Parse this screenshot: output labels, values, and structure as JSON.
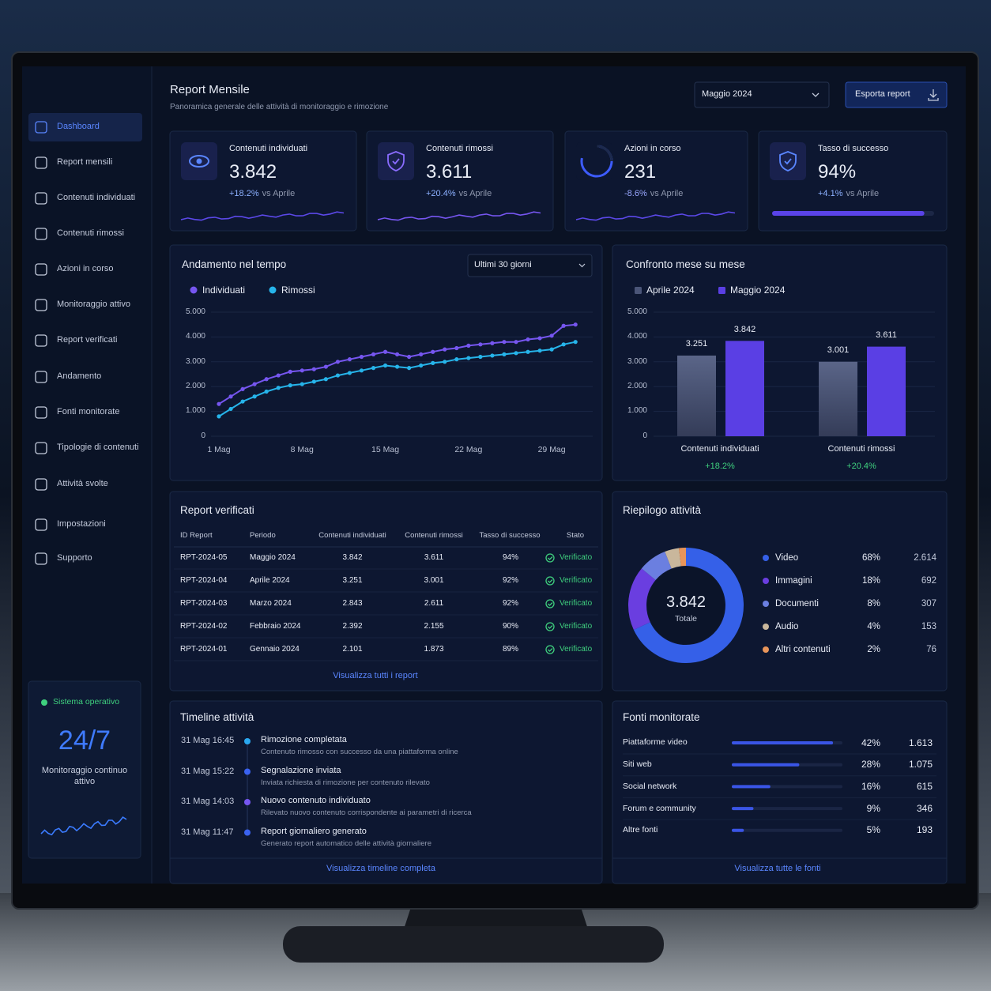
{
  "sidebar": {
    "items": [
      "Dashboard",
      "Report mensili",
      "Contenuti individuati",
      "Contenuti rimossi",
      "Azioni in corso",
      "Monitoraggio attivo",
      "Report verificati",
      "Andamento",
      "Fonti monitorate",
      "Tipologie di contenuti",
      "Attività svolte",
      "Impostazioni",
      "Supporto"
    ],
    "status": {
      "label": "Sistema operativo",
      "value": "24/7",
      "caption": "Monitoraggio continuo attivo"
    }
  },
  "header": {
    "title": "Report Mensile",
    "subtitle": "Panoramica generale delle attività di monitoraggio e rimozione",
    "period": "Maggio 2024",
    "export": "Esporta report"
  },
  "kpis": [
    {
      "label": "Contenuti individuati",
      "value": "3.842",
      "change": "+18.2%",
      "comparison": "vs Aprile"
    },
    {
      "label": "Contenuti rimossi",
      "value": "3.611",
      "change": "+20.4%",
      "comparison": "vs Aprile"
    },
    {
      "label": "Azioni in corso",
      "value": "231",
      "change": "-8.6%",
      "comparison": "vs Aprile"
    },
    {
      "label": "Tasso di successo",
      "value": "94%",
      "change": "+4.1%",
      "comparison": "vs Aprile",
      "progress": 94
    }
  ],
  "trend": {
    "type": "line",
    "title": "Andamento nel tempo",
    "range": "Ultimi 30 giorni",
    "categories": [
      "1 Mag",
      null,
      null,
      null,
      null,
      null,
      null,
      "8 Mag",
      null,
      null,
      null,
      null,
      null,
      null,
      "15 Mag",
      null,
      null,
      null,
      null,
      null,
      null,
      "22 Mag",
      null,
      null,
      null,
      null,
      null,
      null,
      "29 Mag",
      null,
      null
    ],
    "series": [
      {
        "name": "Individuati",
        "color": "#7656f0",
        "values": [
          1300,
          1600,
          1900,
          2100,
          2300,
          2450,
          2600,
          2650,
          2700,
          2800,
          3000,
          3100,
          3200,
          3300,
          3400,
          3300,
          3200,
          3300,
          3400,
          3500,
          3550,
          3650,
          3700,
          3750,
          3800,
          3800,
          3900,
          3950,
          4050,
          4450,
          4500
        ]
      },
      {
        "name": "Rimossi",
        "color": "#26b4ea",
        "values": [
          800,
          1100,
          1400,
          1600,
          1800,
          1950,
          2050,
          2100,
          2200,
          2300,
          2450,
          2550,
          2650,
          2750,
          2850,
          2800,
          2750,
          2850,
          2950,
          3000,
          3100,
          3150,
          3200,
          3250,
          3300,
          3350,
          3400,
          3450,
          3500,
          3700,
          3800
        ]
      }
    ],
    "ylim": [
      0,
      5000
    ],
    "yticks": [
      0,
      {
        "value": 1000,
        "label": "1.000"
      },
      {
        "value": 2000,
        "label": "2.000"
      },
      {
        "value": 3000,
        "label": "3.000"
      },
      {
        "value": 4000,
        "label": "4.000"
      },
      {
        "value": 5000,
        "label": "5.000"
      }
    ],
    "grid": true
  },
  "comparison": {
    "type": "bar",
    "title": "Confronto mese su mese",
    "categories": [
      "Contenuti individuati",
      "Contenuti rimossi"
    ],
    "changes": [
      "+18.2%",
      "+20.4%"
    ],
    "series": [
      {
        "name": "Aprile 2024",
        "color": "#4a5578",
        "values": [
          3251,
          3001
        ],
        "value_labels": [
          "3.251",
          "3.001"
        ]
      },
      {
        "name": "Maggio 2024",
        "color": "#5a3fe4",
        "values": [
          3842,
          3611
        ],
        "value_labels": [
          "3.842",
          "3.611"
        ]
      }
    ],
    "ylim": [
      0,
      5000
    ],
    "yticks": [
      0,
      {
        "value": 1000,
        "label": "1.000"
      },
      {
        "value": 2000,
        "label": "2.000"
      },
      {
        "value": 3000,
        "label": "3.000"
      },
      {
        "value": 4000,
        "label": "4.000"
      },
      {
        "value": 5000,
        "label": "5.000"
      }
    ],
    "grid": true
  },
  "reports": {
    "title": "Report verificati",
    "columns": [
      "ID Report",
      "Periodo",
      "Contenuti individuati",
      "Contenuti rimossi",
      "Tasso di successo",
      "Stato"
    ],
    "rows": [
      [
        "RPT-2024-05",
        "Maggio 2024",
        "3.842",
        "3.611",
        "94%",
        "Verificato"
      ],
      [
        "RPT-2024-04",
        "Aprile 2024",
        "3.251",
        "3.001",
        "92%",
        "Verificato"
      ],
      [
        "RPT-2024-03",
        "Marzo 2024",
        "2.843",
        "2.611",
        "92%",
        "Verificato"
      ],
      [
        "RPT-2024-02",
        "Febbraio 2024",
        "2.392",
        "2.155",
        "90%",
        "Verificato"
      ],
      [
        "RPT-2024-01",
        "Gennaio 2024",
        "2.101",
        "1.873",
        "89%",
        "Verificato"
      ]
    ],
    "link": "Visualizza tutti i report"
  },
  "summary": {
    "type": "pie",
    "title": "Riepilogo attività",
    "total": "3.842",
    "total_label": "Totale",
    "categories": [
      "Video",
      "Immagini",
      "Documenti",
      "Audio",
      "Altri contenuti"
    ],
    "values": [
      68,
      18,
      8,
      4,
      2
    ],
    "value_labels": [
      "68%",
      "18%",
      "8%",
      "4%",
      "2%"
    ],
    "counts": [
      "2.614",
      "692",
      "307",
      "153",
      "76"
    ],
    "colors": [
      "#3560e8",
      "#6a3ee0",
      "#6b7fe0",
      "#c9b79c",
      "#e8955a"
    ]
  },
  "timeline": {
    "title": "Timeline attività",
    "items": [
      {
        "time": "31 Mag 16:45",
        "title": "Rimozione completata",
        "description": "Contenuto rimosso con successo da una piattaforma online"
      },
      {
        "time": "31 Mag 15:22",
        "title": "Segnalazione inviata",
        "description": "Inviata richiesta di rimozione per contenuto rilevato"
      },
      {
        "time": "31 Mag 14:03",
        "title": "Nuovo contenuto individuato",
        "description": "Rilevato nuovo contenuto corrispondente ai parametri di ricerca"
      },
      {
        "time": "31 Mag 11:47",
        "title": "Report giornaliero generato",
        "description": "Generato report automatico delle attività giornaliere"
      }
    ],
    "link": "Visualizza timeline completa"
  },
  "sources": {
    "title": "Fonti monitorate",
    "items": [
      {
        "name": "Piattaforme video",
        "percent": 42,
        "percent_label": "42%",
        "count": "1.613"
      },
      {
        "name": "Siti web",
        "percent": 28,
        "percent_label": "28%",
        "count": "1.075"
      },
      {
        "name": "Social network",
        "percent": 16,
        "percent_label": "16%",
        "count": "615"
      },
      {
        "name": "Forum e community",
        "percent": 9,
        "percent_label": "9%",
        "count": "346"
      },
      {
        "name": "Altre fonti",
        "percent": 5,
        "percent_label": "5%",
        "count": "193"
      }
    ],
    "link": "Visualizza tutte le fonti"
  }
}
